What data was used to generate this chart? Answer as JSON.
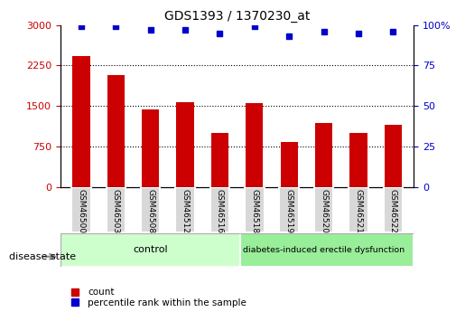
{
  "title": "GDS1393 / 1370230_at",
  "samples": [
    "GSM46500",
    "GSM46503",
    "GSM46508",
    "GSM46512",
    "GSM46516",
    "GSM46518",
    "GSM46519",
    "GSM46520",
    "GSM46521",
    "GSM46522"
  ],
  "counts": [
    2420,
    2080,
    1440,
    1580,
    1000,
    1560,
    840,
    1180,
    1000,
    1160
  ],
  "percentiles": [
    99,
    99,
    97,
    97,
    95,
    99,
    93,
    96,
    95,
    96
  ],
  "bar_color": "#cc0000",
  "dot_color": "#0000cc",
  "ylim_left": [
    0,
    3000
  ],
  "ylim_right": [
    0,
    100
  ],
  "yticks_left": [
    0,
    750,
    1500,
    2250,
    3000
  ],
  "yticks_right": [
    0,
    25,
    50,
    75,
    100
  ],
  "n_control": 5,
  "n_disease": 5,
  "control_label": "control",
  "disease_label": "diabetes-induced erectile dysfunction",
  "group_label": "disease state",
  "legend_count": "count",
  "legend_percentile": "percentile rank within the sample",
  "control_color": "#ccffcc",
  "disease_color": "#99ee99",
  "ticklabel_bg": "#d8d8d8",
  "grid_lines": [
    750,
    1500,
    2250
  ]
}
